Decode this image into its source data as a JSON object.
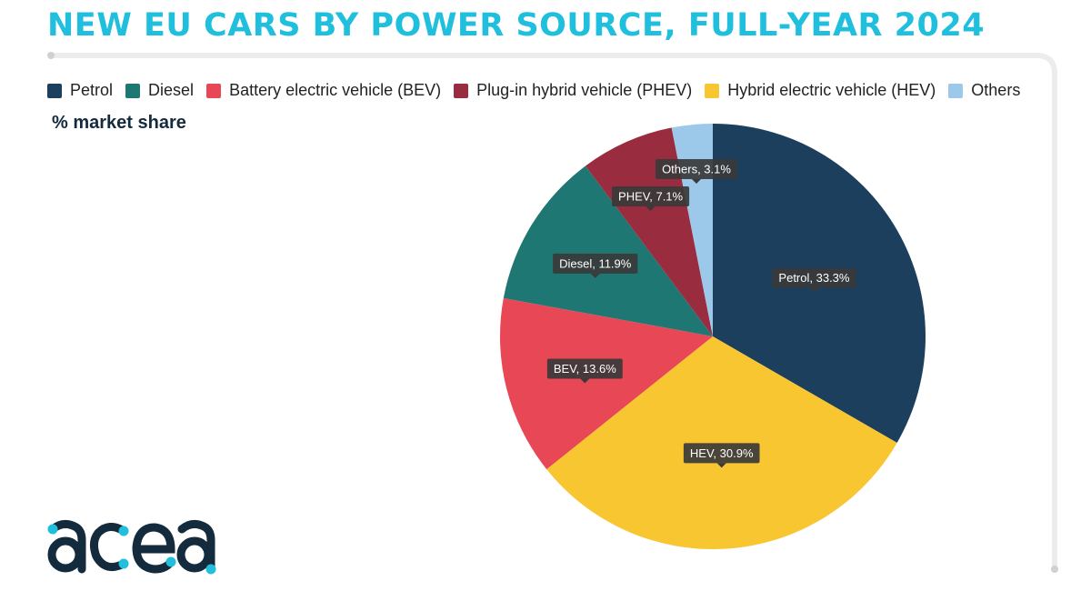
{
  "title": "NEW EU CARS BY POWER SOURCE, FULL-YEAR 2024",
  "subtitle": "% market share",
  "legend": [
    {
      "label": "Petrol",
      "color": "#1c3f5e"
    },
    {
      "label": "Diesel",
      "color": "#1e7773"
    },
    {
      "label": "Battery electric vehicle (BEV)",
      "color": "#e84856"
    },
    {
      "label": "Plug-in hybrid vehicle (PHEV)",
      "color": "#9a2c3f"
    },
    {
      "label": "Hybrid electric vehicle (HEV)",
      "color": "#f8c631"
    },
    {
      "label": "Others",
      "color": "#9cc9ea"
    }
  ],
  "chart_data": {
    "type": "pie",
    "title": "NEW EU CARS BY POWER SOURCE, FULL-YEAR 2024",
    "unit": "% market share",
    "legend_position": "top",
    "slices": [
      {
        "name": "Petrol",
        "value": 33.3,
        "label": "Petrol, 33.3%",
        "color": "#1c3f5e"
      },
      {
        "name": "HEV",
        "value": 30.9,
        "label": "HEV, 30.9%",
        "color": "#f8c631"
      },
      {
        "name": "BEV",
        "value": 13.6,
        "label": "BEV, 13.6%",
        "color": "#e84856"
      },
      {
        "name": "Diesel",
        "value": 11.9,
        "label": "Diesel, 11.9%",
        "color": "#1e7773"
      },
      {
        "name": "PHEV",
        "value": 7.1,
        "label": "PHEV, 7.1%",
        "color": "#9a2c3f"
      },
      {
        "name": "Others",
        "value": 3.1,
        "label": "Others, 3.1%",
        "color": "#9cc9ea"
      }
    ]
  },
  "logo": {
    "text": "acea",
    "color": "#142a3d",
    "dot_color": "#1fbfdd"
  }
}
